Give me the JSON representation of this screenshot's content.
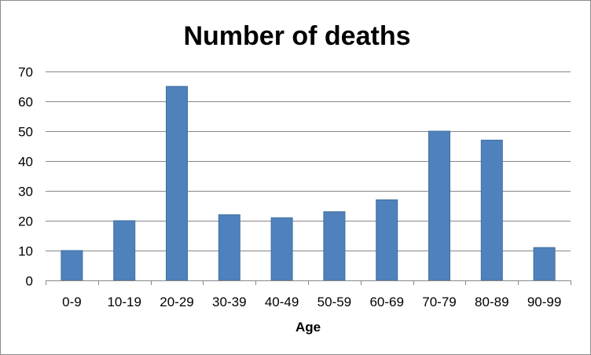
{
  "chart_data": {
    "type": "bar",
    "title": "Number of deaths",
    "xlabel": "Age",
    "ylabel": "",
    "categories": [
      "0-9",
      "10-19",
      "20-29",
      "30-39",
      "40-49",
      "50-59",
      "60-69",
      "70-79",
      "80-89",
      "90-99"
    ],
    "values": [
      10,
      20,
      65,
      22,
      21,
      23,
      27,
      50,
      47,
      11
    ],
    "ylim": [
      0,
      70
    ],
    "yticks": [
      "0",
      "10",
      "20",
      "30",
      "40",
      "50",
      "60",
      "70"
    ],
    "grid": "horizontal",
    "legend": "none",
    "bar_color": "#4f81bd",
    "bar_edge_color": "#41709f",
    "grid_color": "#878787"
  }
}
